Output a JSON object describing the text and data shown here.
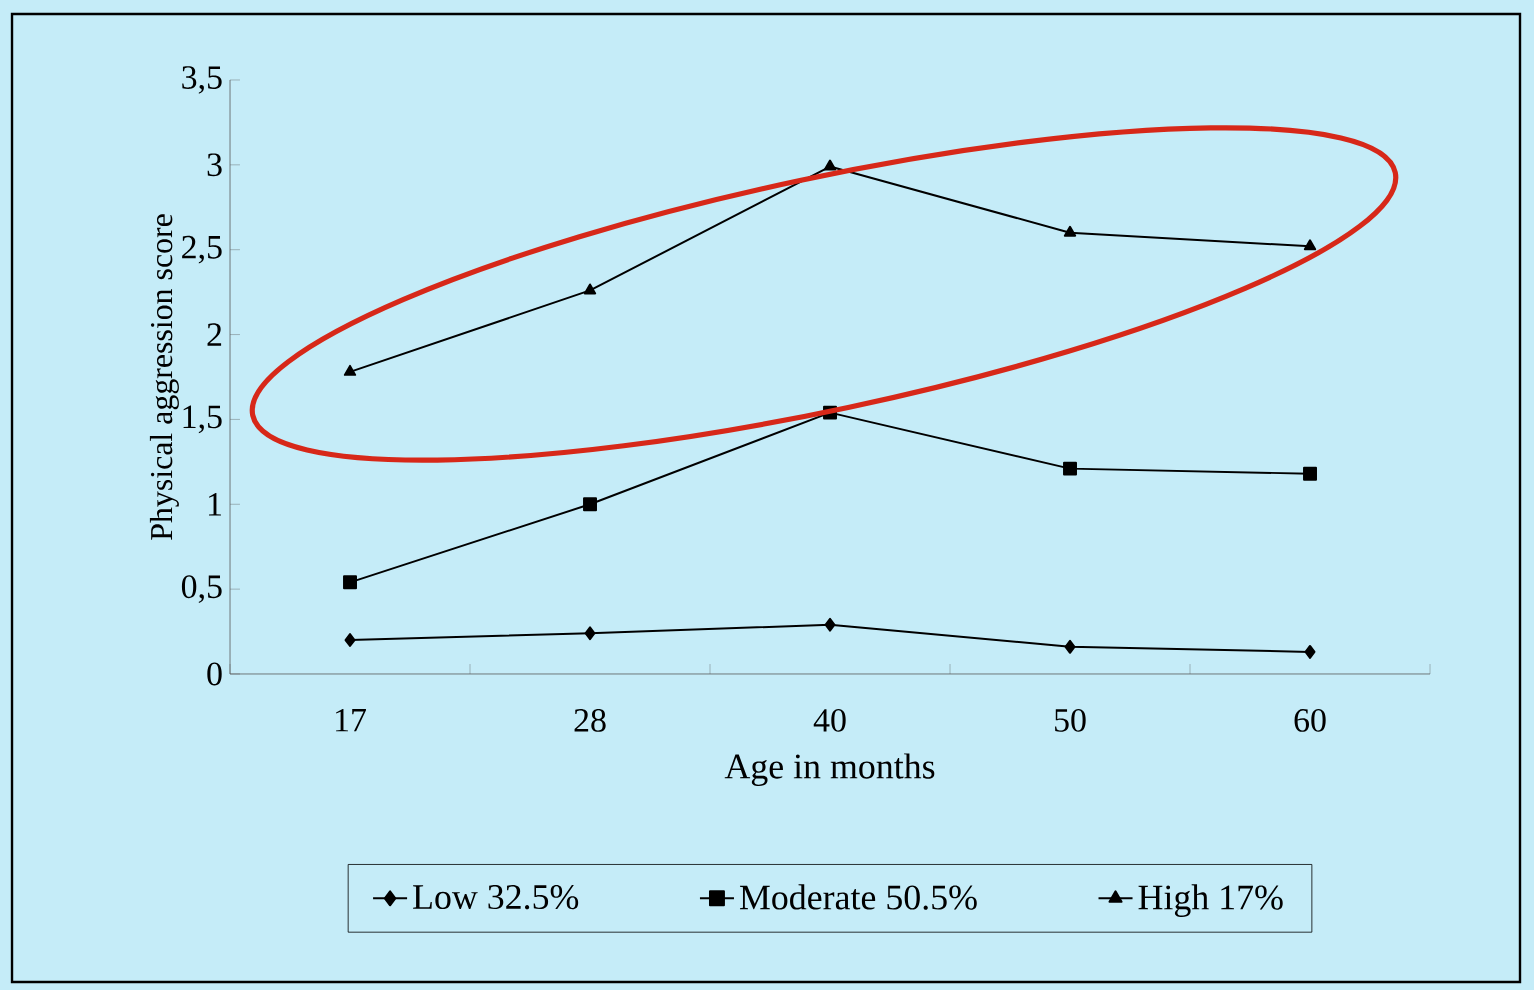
{
  "chart_data": {
    "type": "line",
    "xlabel": "Age in months",
    "ylabel": "Physical aggression score",
    "categories": [
      "17",
      "28",
      "40",
      "50",
      "60"
    ],
    "series": [
      {
        "name": "Low 32.5%",
        "color": "#000000",
        "marker": "diamond",
        "values": [
          0.2,
          0.24,
          0.29,
          0.16,
          0.13
        ]
      },
      {
        "name": "Moderate 50.5%",
        "color": "#000000",
        "marker": "square",
        "values": [
          0.54,
          1.0,
          1.54,
          1.21,
          1.18
        ]
      },
      {
        "name": "High 17%",
        "color": "#000000",
        "marker": "triangle",
        "values": [
          1.78,
          2.26,
          2.99,
          2.6,
          2.52
        ]
      }
    ],
    "ylim": [
      0,
      3.5
    ],
    "yticks": [
      0,
      {
        "value": 0.5,
        "label": "0,5"
      },
      1,
      {
        "value": 1.5,
        "label": "1,5"
      },
      2,
      {
        "value": 2.5,
        "label": "2,5"
      },
      3,
      {
        "value": 3.5,
        "label": "3,5"
      }
    ],
    "grid": false,
    "legend": "bottom",
    "line_style": "solid"
  }
}
